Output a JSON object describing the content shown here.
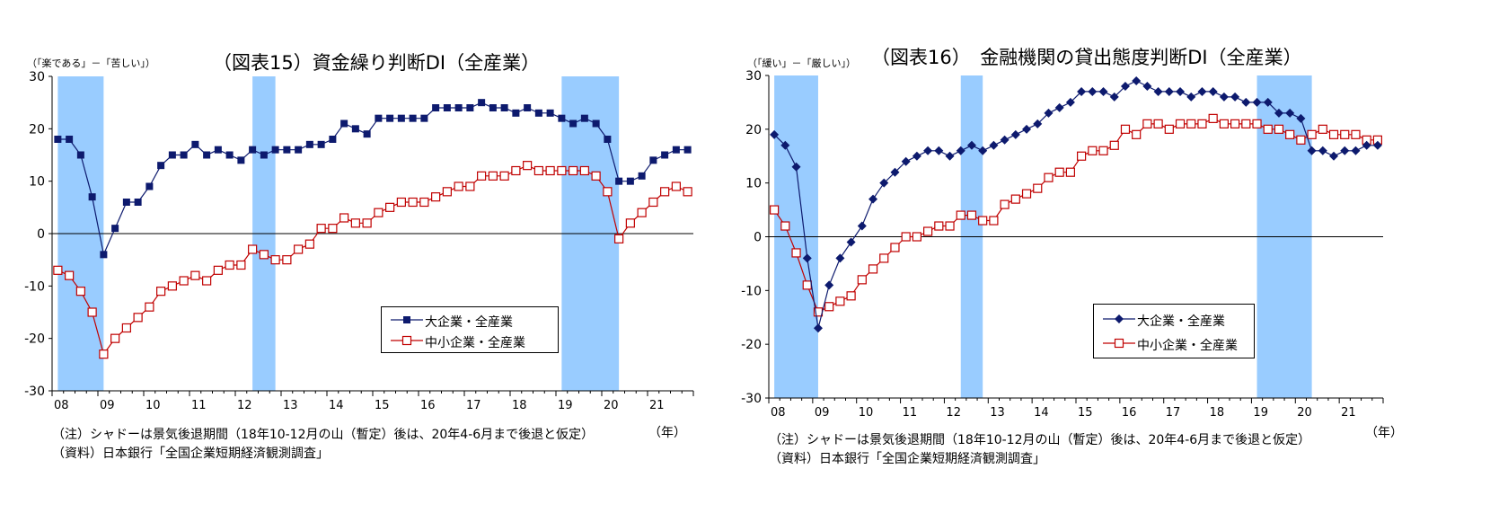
{
  "charts": [
    {
      "title": "（図表15）資金繰り判断DI（全産業）",
      "unit_label": "（「楽である」－「苦しい」）",
      "year_unit": "（年）",
      "note1": "（注）シャドーは景気後退期間（18年10-12月の山（暫定）後は、20年4-6月まで後退と仮定）",
      "note2": "（資料）日本銀行「全国企業短期経済観測調査」",
      "legend": [
        "大企業・全産業",
        "中小企業・全産業"
      ]
    },
    {
      "title": "（図表16）　金融機関の貸出態度判断DI（全産業）",
      "unit_label": "（「緩い」－「厳しい」）",
      "year_unit": "（年）",
      "note1": "（注）シャドーは景気後退期間（18年10-12月の山（暫定）後は、20年4-6月まで後退と仮定）",
      "note2": "（資料）日本銀行「全国企業短期経済観測調査」",
      "legend": [
        "大企業・全産業",
        "中小企業・全産業"
      ]
    }
  ],
  "chart_data": [
    {
      "type": "line",
      "title": "（図表15）資金繰り判断DI（全産業）",
      "ylabel": "（「楽である」－「苦しい」）",
      "xlabel": "（年）",
      "x_tick_labels": [
        "08",
        "09",
        "10",
        "11",
        "12",
        "13",
        "14",
        "15",
        "16",
        "17",
        "18",
        "19",
        "20",
        "21"
      ],
      "y_ticks": [
        30,
        20,
        10,
        0,
        -10,
        -20,
        -30
      ],
      "ylim": [
        -30,
        30
      ],
      "shaded_periods": [
        [
          "08Q1",
          "09Q1"
        ],
        [
          "12Q2",
          "12Q4"
        ],
        [
          "19Q1",
          "20Q2"
        ]
      ],
      "series": [
        {
          "name": "大企業・全産業",
          "marker": "filled-square",
          "color": "#0d1a6e",
          "values": [
            18,
            18,
            15,
            7,
            -4,
            1,
            6,
            6,
            9,
            13,
            15,
            15,
            17,
            15,
            16,
            15,
            14,
            16,
            15,
            16,
            16,
            16,
            17,
            17,
            18,
            21,
            20,
            19,
            22,
            22,
            22,
            22,
            22,
            24,
            24,
            24,
            24,
            25,
            24,
            24,
            23,
            24,
            23,
            23,
            22,
            21,
            22,
            21,
            18,
            10,
            10,
            11,
            14,
            15,
            16,
            16
          ]
        },
        {
          "name": "中小企業・全産業",
          "marker": "hollow-square",
          "color": "#c00000",
          "values": [
            -7,
            -8,
            -11,
            -15,
            -23,
            -20,
            -18,
            -16,
            -14,
            -11,
            -10,
            -9,
            -8,
            -9,
            -7,
            -6,
            -6,
            -3,
            -4,
            -5,
            -5,
            -3,
            -2,
            1,
            1,
            3,
            2,
            2,
            4,
            5,
            6,
            6,
            6,
            7,
            8,
            9,
            9,
            11,
            11,
            11,
            12,
            13,
            12,
            12,
            12,
            12,
            12,
            11,
            8,
            -1,
            2,
            4,
            6,
            8,
            9,
            8
          ]
        }
      ]
    },
    {
      "type": "line",
      "title": "（図表16）　金融機関の貸出態度判断DI（全産業）",
      "ylabel": "（「緩い」－「厳しい」）",
      "xlabel": "（年）",
      "x_tick_labels": [
        "08",
        "09",
        "10",
        "11",
        "12",
        "13",
        "14",
        "15",
        "16",
        "17",
        "18",
        "19",
        "20",
        "21"
      ],
      "y_ticks": [
        30,
        20,
        10,
        0,
        -10,
        -20,
        -30
      ],
      "ylim": [
        -30,
        30
      ],
      "shaded_periods": [
        [
          "08Q1",
          "09Q1"
        ],
        [
          "12Q2",
          "12Q4"
        ],
        [
          "19Q1",
          "20Q2"
        ]
      ],
      "series": [
        {
          "name": "大企業・全産業",
          "marker": "filled-diamond",
          "color": "#0d1a6e",
          "values": [
            19,
            17,
            13,
            -4,
            -17,
            -9,
            -4,
            -1,
            2,
            7,
            10,
            12,
            14,
            15,
            16,
            16,
            15,
            16,
            17,
            16,
            17,
            18,
            19,
            20,
            21,
            23,
            24,
            25,
            27,
            27,
            27,
            26,
            28,
            29,
            28,
            27,
            27,
            27,
            26,
            27,
            27,
            26,
            26,
            25,
            25,
            25,
            23,
            23,
            22,
            16,
            16,
            15,
            16,
            16,
            17,
            17
          ]
        },
        {
          "name": "中小企業・全産業",
          "marker": "hollow-square",
          "color": "#c00000",
          "values": [
            5,
            2,
            -3,
            -9,
            -14,
            -13,
            -12,
            -11,
            -8,
            -6,
            -4,
            -2,
            0,
            0,
            1,
            2,
            2,
            4,
            4,
            3,
            3,
            6,
            7,
            8,
            9,
            11,
            12,
            12,
            15,
            16,
            16,
            17,
            20,
            19,
            21,
            21,
            20,
            21,
            21,
            21,
            22,
            21,
            21,
            21,
            21,
            20,
            20,
            19,
            18,
            19,
            20,
            19,
            19,
            19,
            18,
            18
          ]
        }
      ]
    }
  ]
}
